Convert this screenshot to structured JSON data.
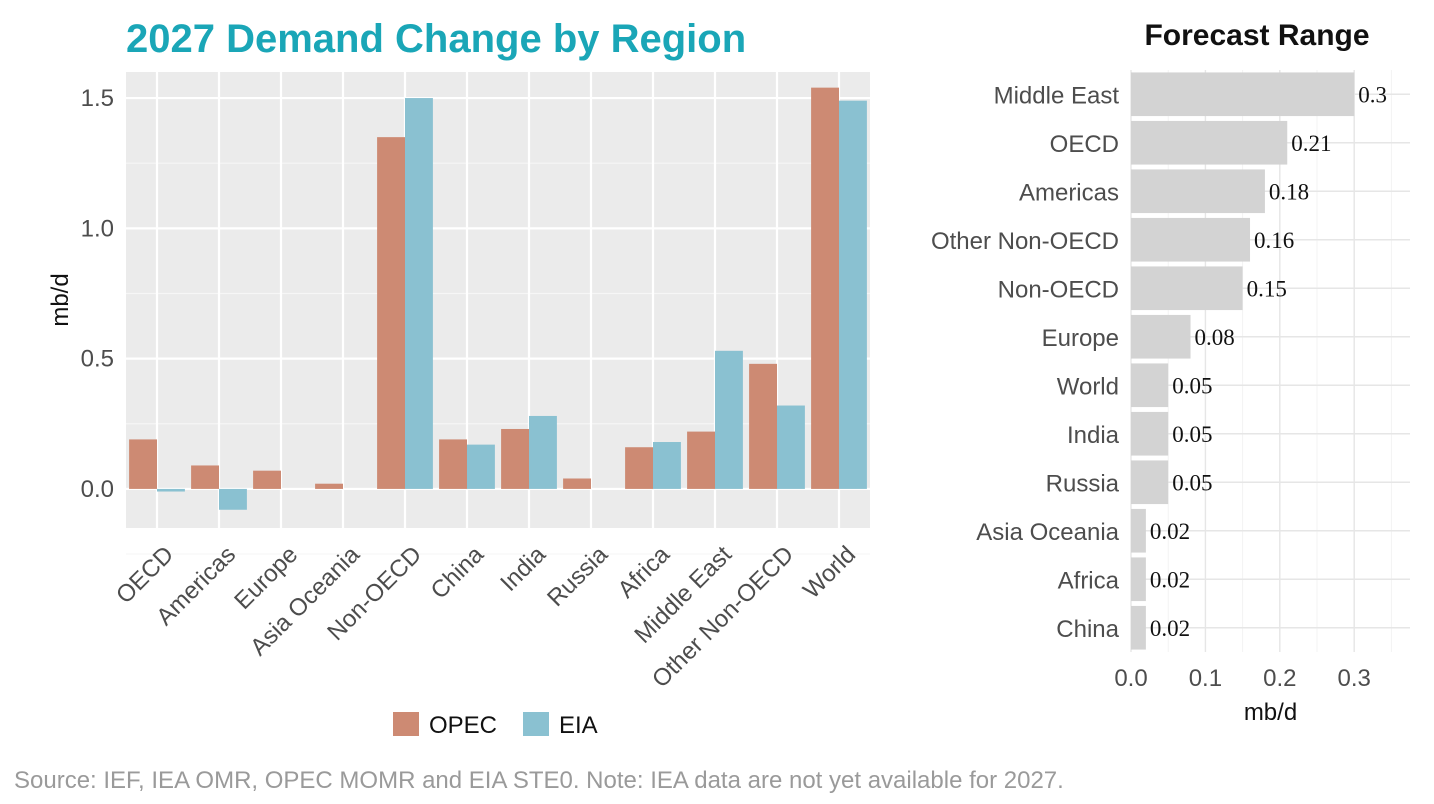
{
  "source_note": "Source: IEF, IEA OMR, OPEC MOMR and EIA STE0. Note: IEA data are not yet available for 2027.",
  "colors": {
    "title": "#1aa6b7",
    "opec": "#cd8a73",
    "eia": "#8ac1d1",
    "panel_bg": "#ebebeb",
    "range_bar": "#d3d3d3"
  },
  "chart_data": [
    {
      "type": "bar",
      "title": "2027 Demand Change by Region",
      "xlabel": "",
      "ylabel": "mb/d",
      "categories": [
        "OECD",
        "Americas",
        "Europe",
        "Asia Oceania",
        "Non-OECD",
        "China",
        "India",
        "Russia",
        "Africa",
        "Middle East",
        "Other Non-OECD",
        "World"
      ],
      "series": [
        {
          "name": "OPEC",
          "values": [
            0.19,
            0.09,
            0.07,
            0.02,
            1.35,
            0.19,
            0.23,
            0.04,
            0.16,
            0.22,
            0.48,
            1.54
          ]
        },
        {
          "name": "EIA",
          "values": [
            -0.01,
            -0.08,
            0.0,
            0.0,
            1.5,
            0.17,
            0.28,
            0.0,
            0.18,
            0.53,
            0.32,
            1.49
          ]
        }
      ],
      "yticks": [
        "0.0",
        "0.5",
        "1.0",
        "1.5"
      ],
      "ylim": [
        -0.15,
        1.6
      ],
      "grid": true,
      "legend": "bottom"
    },
    {
      "type": "bar",
      "orientation": "horizontal",
      "title": "Forecast Range",
      "xlabel": "mb/d",
      "ylabel": "",
      "categories": [
        "Middle East",
        "OECD",
        "Americas",
        "Other Non-OECD",
        "Non-OECD",
        "Europe",
        "World",
        "India",
        "Russia",
        "Asia Oceania",
        "Africa",
        "China"
      ],
      "values": [
        0.3,
        0.21,
        0.18,
        0.16,
        0.15,
        0.08,
        0.05,
        0.05,
        0.05,
        0.02,
        0.02,
        0.02
      ],
      "value_labels": [
        "0.3",
        "0.21",
        "0.18",
        "0.16",
        "0.15",
        "0.08",
        "0.05",
        "0.05",
        "0.05",
        "0.02",
        "0.02",
        "0.02"
      ],
      "xticks": [
        "0.0",
        "0.1",
        "0.2",
        "0.3"
      ],
      "xlim": [
        0,
        0.375
      ],
      "grid": true
    }
  ]
}
